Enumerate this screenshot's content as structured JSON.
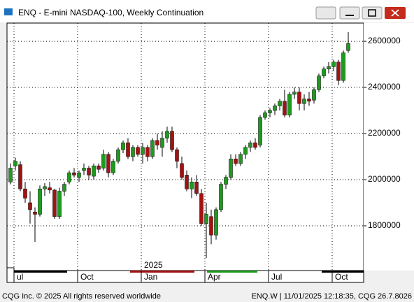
{
  "chart_data": {
    "type": "candlestick",
    "title": "ENQ - E-mini NASDAQ-100, Weekly Continuation",
    "year_label": "2025",
    "categories": [
      null,
      "ul",
      null,
      null,
      null,
      null,
      null,
      null,
      null,
      null,
      null,
      null,
      null,
      null,
      "Oct",
      null,
      null,
      null,
      null,
      null,
      null,
      null,
      null,
      null,
      null,
      null,
      null,
      "Jan",
      null,
      null,
      null,
      null,
      null,
      null,
      null,
      null,
      null,
      null,
      null,
      null,
      "Apr",
      null,
      null,
      null,
      null,
      null,
      null,
      null,
      null,
      null,
      null,
      null,
      null,
      "Jul",
      null,
      null,
      null,
      null,
      null,
      null,
      null,
      null,
      null,
      null,
      null,
      null,
      "Oct",
      null,
      null,
      null
    ],
    "open": [
      1990000,
      2060000,
      2065000,
      1960000,
      1900000,
      1860000,
      1850000,
      1960000,
      1965000,
      1955000,
      1840000,
      1950000,
      1990000,
      2030000,
      2010000,
      2040000,
      2050000,
      2015000,
      2060000,
      2050000,
      2110000,
      2030000,
      2080000,
      2130000,
      2160000,
      2100000,
      2140000,
      2110000,
      2140000,
      2100000,
      2170000,
      2140000,
      2180000,
      2210000,
      2130000,
      2070000,
      2020000,
      1960000,
      1990000,
      1940000,
      1810000,
      1840000,
      1760000,
      1870000,
      1980000,
      2010000,
      2090000,
      2070000,
      2110000,
      2140000,
      2160000,
      2150000,
      2270000,
      2290000,
      2300000,
      2320000,
      2340000,
      2280000,
      2370000,
      2380000,
      2330000,
      2350000,
      2345000,
      2390000,
      2450000,
      2480000,
      2490000,
      2510000,
      2430000,
      2560000
    ],
    "high": [
      2070000,
      2095000,
      2080000,
      1990000,
      1950000,
      1880000,
      1975000,
      1985000,
      1990000,
      1960000,
      1965000,
      1990000,
      2040000,
      2050000,
      2040000,
      2070000,
      2060000,
      2070000,
      2070000,
      2130000,
      2120000,
      2090000,
      2140000,
      2170000,
      2180000,
      2150000,
      2150000,
      2160000,
      2150000,
      2180000,
      2200000,
      2210000,
      2230000,
      2230000,
      2140000,
      2100000,
      2040000,
      2010000,
      2020000,
      1960000,
      1900000,
      1870000,
      1880000,
      1990000,
      2020000,
      2110000,
      2110000,
      2120000,
      2150000,
      2170000,
      2180000,
      2280000,
      2300000,
      2310000,
      2330000,
      2350000,
      2390000,
      2380000,
      2400000,
      2400000,
      2370000,
      2380000,
      2400000,
      2460000,
      2490000,
      2510000,
      2520000,
      2520000,
      2560000,
      2640000
    ],
    "low": [
      1980000,
      2040000,
      1950000,
      1900000,
      1810000,
      1730000,
      1840000,
      1930000,
      1940000,
      1830000,
      1830000,
      1930000,
      1980000,
      2010000,
      1990000,
      2020000,
      2000000,
      2000000,
      2030000,
      2040000,
      2010000,
      2020000,
      2070000,
      2115000,
      2090000,
      2080000,
      2100000,
      2070000,
      2080000,
      2090000,
      2130000,
      2100000,
      2160000,
      2120000,
      2050000,
      2000000,
      1950000,
      1920000,
      1930000,
      1800000,
      1660000,
      1720000,
      1740000,
      1860000,
      1960000,
      2000000,
      2060000,
      2060000,
      2090000,
      2120000,
      2130000,
      2140000,
      2260000,
      2270000,
      2280000,
      2300000,
      2270000,
      2270000,
      2350000,
      2300000,
      2300000,
      2320000,
      2330000,
      2380000,
      2440000,
      2460000,
      2470000,
      2410000,
      2420000,
      2550000
    ],
    "close": [
      2050000,
      2080000,
      1960000,
      1920000,
      1870000,
      1850000,
      1960000,
      1970000,
      1955000,
      1840000,
      1950000,
      1980000,
      2030000,
      2020000,
      2030000,
      2050000,
      2020000,
      2060000,
      2045000,
      2110000,
      2030000,
      2080000,
      2130000,
      2160000,
      2100000,
      2140000,
      2110000,
      2140000,
      2100000,
      2170000,
      2150000,
      2180000,
      2210000,
      2130000,
      2080000,
      2010000,
      1960000,
      1990000,
      1940000,
      1810000,
      1850000,
      1760000,
      1870000,
      1980000,
      2010000,
      2090000,
      2070000,
      2110000,
      2140000,
      2160000,
      2140000,
      2270000,
      2290000,
      2300000,
      2320000,
      2340000,
      2280000,
      2370000,
      2380000,
      2330000,
      2350000,
      2340000,
      2390000,
      2450000,
      2480000,
      2490000,
      2510000,
      2430000,
      2550000,
      2590000
    ],
    "up_color": "#1f9a1f",
    "down_color": "#a31212",
    "ylim": [
      1606000,
      2679000
    ],
    "yticks": [
      1800000,
      2000000,
      2200000,
      2400000,
      2600000
    ],
    "grid": true
  },
  "footer": {
    "left": "CQG Inc. © 2025 All rights reserved worldwide",
    "right": "ENQ.W | 11/01/2025 12:18:35, CQG 26.7.8026"
  }
}
